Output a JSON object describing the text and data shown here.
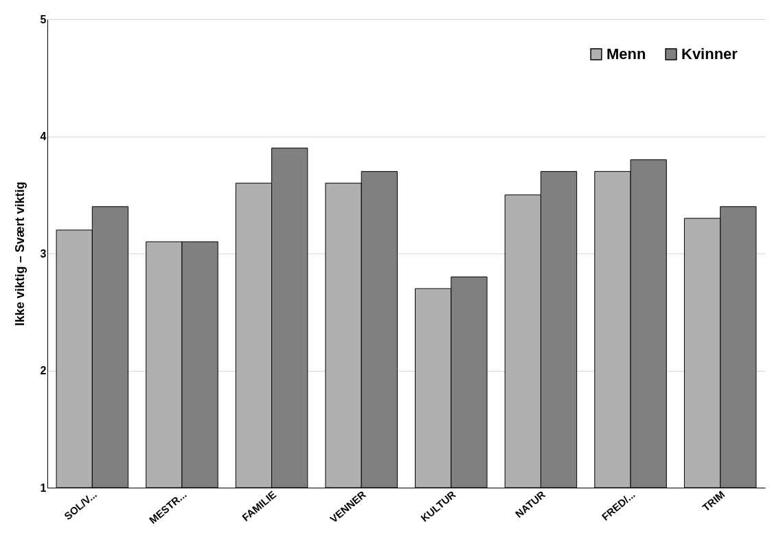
{
  "chart_data": {
    "type": "bar",
    "ylabel": "Ikke viktig – Svært viktig",
    "categories": [
      "SOL/V...",
      "MESTR...",
      "FAMILIE",
      "VENNER",
      "KULTUR",
      "NATUR",
      "FRED/...",
      "TRIM"
    ],
    "series": [
      {
        "name": "Menn",
        "color": "#b0b0b0",
        "values": [
          3.2,
          3.1,
          3.6,
          3.6,
          2.7,
          3.5,
          3.7,
          3.3
        ]
      },
      {
        "name": "Kvinner",
        "color": "#808080",
        "values": [
          3.4,
          3.1,
          3.9,
          3.7,
          2.8,
          3.7,
          3.8,
          3.4
        ]
      }
    ],
    "ylim": [
      1,
      5
    ],
    "yticks": [
      1,
      2,
      3,
      4,
      5
    ],
    "grid": "y",
    "legend": "top right"
  }
}
